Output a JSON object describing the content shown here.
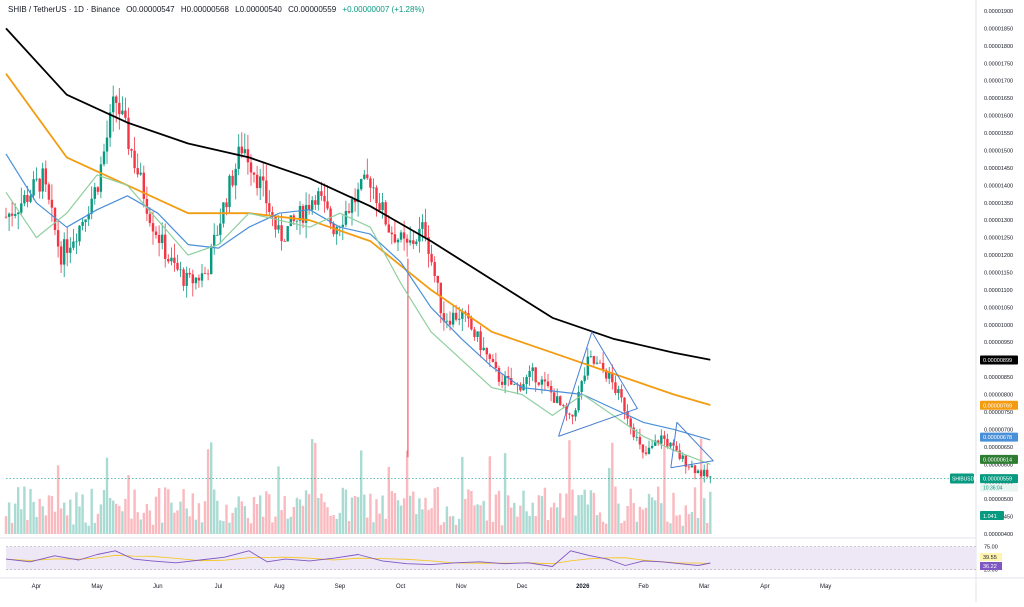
{
  "header": {
    "symbol": "SHIB / TetherUS · 1D · Binance",
    "open": "O0.00000547",
    "high": "H0.00000568",
    "low": "L0.00000540",
    "close": "C0.00000559",
    "change": "+0.00000007 (+1.28%)"
  },
  "colors": {
    "up": "#089981",
    "down": "#f23645",
    "ma_black": "#000000",
    "ma_orange": "#f39c12",
    "ma_blue": "#4a90d9",
    "ma_green": "#8fcf9f",
    "triangle": "#4a7fd0",
    "rsi_line": "#7e57c2",
    "rsi_ma": "#f5c518",
    "rsi_band": "#ede7f6"
  },
  "chart_data": [
    {
      "type": "line",
      "y_axis_labels": [
        "0.00001900",
        "0.00001850",
        "0.00001800",
        "0.00001750",
        "0.00001700",
        "0.00001650",
        "0.00001600",
        "0.00001550",
        "0.00001500",
        "0.00001450",
        "0.00001400",
        "0.00001350",
        "0.00001300",
        "0.00001250",
        "0.00001200",
        "0.00001150",
        "0.00001100",
        "0.00001050",
        "0.00001000",
        "0.00000950",
        "0.00000900",
        "0.00000850",
        "0.00000800",
        "0.00000750",
        "0.00000700",
        "0.00000650",
        "0.00000600",
        "0.00000550",
        "0.00000500",
        "0.00000450",
        "0.00000400"
      ],
      "x_axis_labels": [
        {
          "label": "Apr",
          "x": 0.5
        },
        {
          "label": "May",
          "x": 1.5
        },
        {
          "label": "Jun",
          "x": 2.5
        },
        {
          "label": "Jul",
          "x": 3.5
        },
        {
          "label": "Aug",
          "x": 4.5
        },
        {
          "label": "Sep",
          "x": 5.5
        },
        {
          "label": "Oct",
          "x": 6.5
        },
        {
          "label": "Nov",
          "x": 7.5
        },
        {
          "label": "Dec",
          "x": 8.5
        },
        {
          "label": "2026",
          "x": 9.5
        },
        {
          "label": "Feb",
          "x": 10.5
        },
        {
          "label": "Mar",
          "x": 11.5
        },
        {
          "label": "Apr",
          "x": 12.5
        },
        {
          "label": "May",
          "x": 13.5
        }
      ],
      "xlim": [
        0,
        14
      ],
      "ylim": [
        4e-06,
        1.92e-05
      ],
      "price_series": {
        "x": [
          0,
          0.3,
          0.6,
          0.9,
          1.2,
          1.5,
          1.8,
          2.1,
          2.4,
          2.7,
          3.0,
          3.3,
          3.6,
          3.9,
          4.2,
          4.5,
          4.8,
          5.1,
          5.4,
          5.7,
          6.0,
          6.3,
          6.6,
          6.9,
          7.2,
          7.5,
          7.8,
          8.1,
          8.4,
          8.7,
          9.0,
          9.3,
          9.6,
          9.9,
          10.2,
          10.5,
          10.8,
          11.1,
          11.4,
          11.6
        ],
        "y": [
          1.31e-05,
          1.36e-05,
          1.42e-05,
          1.2e-05,
          1.28e-05,
          1.4e-05,
          1.65e-05,
          1.48e-05,
          1.3e-05,
          1.18e-05,
          1.12e-05,
          1.15e-05,
          1.35e-05,
          1.52e-05,
          1.4e-05,
          1.25e-05,
          1.3e-05,
          1.38e-05,
          1.28e-05,
          1.35e-05,
          1.42e-05,
          1.28e-05,
          1.22e-05,
          1.28e-05,
          1.02e-05,
          1.03e-05,
          9.5e-06,
          8.5e-06,
          8.2e-06,
          8.6e-06,
          8e-06,
          7.2e-06,
          9e-06,
          8.6e-06,
          7.6e-06,
          6.2e-06,
          6.8e-06,
          6.2e-06,
          5.8e-06,
          5.6e-06
        ]
      },
      "moving_averages": [
        {
          "color_key": "ma_black",
          "x": [
            0,
            1,
            2,
            3,
            4,
            5,
            6,
            7,
            8,
            9,
            10,
            11,
            11.6
          ],
          "y": [
            1.85e-05,
            1.66e-05,
            1.58e-05,
            1.52e-05,
            1.48e-05,
            1.42e-05,
            1.34e-05,
            1.24e-05,
            1.13e-05,
            1.02e-05,
            9.6e-06,
            9.2e-06,
            9e-06
          ]
        },
        {
          "color_key": "ma_orange",
          "x": [
            0,
            1,
            2,
            3,
            4,
            5,
            6,
            7,
            8,
            9,
            10,
            11,
            11.6
          ],
          "y": [
            1.72e-05,
            1.48e-05,
            1.4e-05,
            1.32e-05,
            1.32e-05,
            1.3e-05,
            1.24e-05,
            1.1e-05,
            9.8e-06,
            9.2e-06,
            8.6e-06,
            8e-06,
            7.7e-06
          ]
        },
        {
          "color_key": "ma_blue",
          "x": [
            0,
            0.5,
            1,
            1.5,
            2,
            2.5,
            3,
            3.5,
            4,
            4.5,
            5,
            5.5,
            6,
            6.5,
            7,
            7.5,
            8,
            8.5,
            9,
            9.5,
            10,
            10.5,
            11,
            11.6
          ],
          "y": [
            1.49e-05,
            1.35e-05,
            1.28e-05,
            1.33e-05,
            1.37e-05,
            1.32e-05,
            1.23e-05,
            1.22e-05,
            1.28e-05,
            1.32e-05,
            1.33e-05,
            1.28e-05,
            1.26e-05,
            1.18e-05,
            1.05e-05,
            9.6e-06,
            8.8e-06,
            8.2e-06,
            8.1e-06,
            8e-06,
            7.6e-06,
            7.2e-06,
            7e-06,
            6.7e-06
          ]
        },
        {
          "color_key": "ma_green",
          "x": [
            0,
            0.5,
            1,
            1.5,
            2,
            2.5,
            3,
            3.5,
            4,
            4.5,
            5,
            5.5,
            6,
            6.5,
            7,
            7.5,
            8,
            8.5,
            9,
            9.5,
            10,
            10.5,
            11,
            11.6
          ],
          "y": [
            1.38e-05,
            1.25e-05,
            1.32e-05,
            1.43e-05,
            1.4e-05,
            1.3e-05,
            1.2e-05,
            1.23e-05,
            1.32e-05,
            1.3e-05,
            1.28e-05,
            1.32e-05,
            1.28e-05,
            1.12e-05,
            9.8e-06,
            9e-06,
            8.2e-06,
            8e-06,
            7.4e-06,
            8e-06,
            7.4e-06,
            6.8e-06,
            6.4e-06,
            6e-06
          ]
        }
      ],
      "triangles": [
        {
          "x": [
            9.1,
            9.65,
            10.4,
            9.1
          ],
          "y": [
            6.8e-06,
            9.8e-06,
            7.6e-06,
            6.8e-06
          ]
        },
        {
          "x": [
            10.95,
            11.05,
            11.65,
            10.95
          ],
          "y": [
            5.9e-06,
            7.2e-06,
            6.1e-06,
            5.9e-06
          ]
        }
      ],
      "price_badges": [
        {
          "value": "0.00000899",
          "color_key": "ma_black"
        },
        {
          "value": "0.00000769",
          "color_key": "ma_orange"
        },
        {
          "value": "0.00000678",
          "color_key": "ma_blue"
        },
        {
          "value": "0.00000614",
          "color": "#2e7d32"
        },
        {
          "value": "0.00000559",
          "color": "#089981"
        }
      ],
      "current_badge": {
        "symbol": "SHIBUSDT",
        "price": "0.00000559",
        "countdown": "10:36:04"
      },
      "volume_badge": "1.041"
    },
    {
      "type": "line",
      "name": "RSI",
      "ylim": [
        20,
        85
      ],
      "levels": [
        "75.00",
        "25.00"
      ],
      "rsi_value": "39.55",
      "rsi_ma_value": "36.22",
      "x": [
        0,
        0.4,
        0.8,
        1.2,
        1.5,
        1.8,
        2.1,
        2.4,
        2.8,
        3.2,
        3.6,
        4.0,
        4.3,
        4.6,
        5.0,
        5.4,
        5.8,
        6.2,
        6.6,
        7.0,
        7.4,
        7.8,
        8.2,
        8.6,
        9.0,
        9.3,
        9.6,
        9.9,
        10.2,
        10.5,
        10.8,
        11.1,
        11.4,
        11.6
      ],
      "y": [
        48,
        42,
        55,
        46,
        58,
        66,
        48,
        44,
        40,
        46,
        52,
        66,
        42,
        48,
        44,
        50,
        58,
        44,
        38,
        36,
        40,
        42,
        38,
        40,
        32,
        66,
        56,
        48,
        34,
        44,
        42,
        38,
        34,
        39.55
      ]
    }
  ]
}
